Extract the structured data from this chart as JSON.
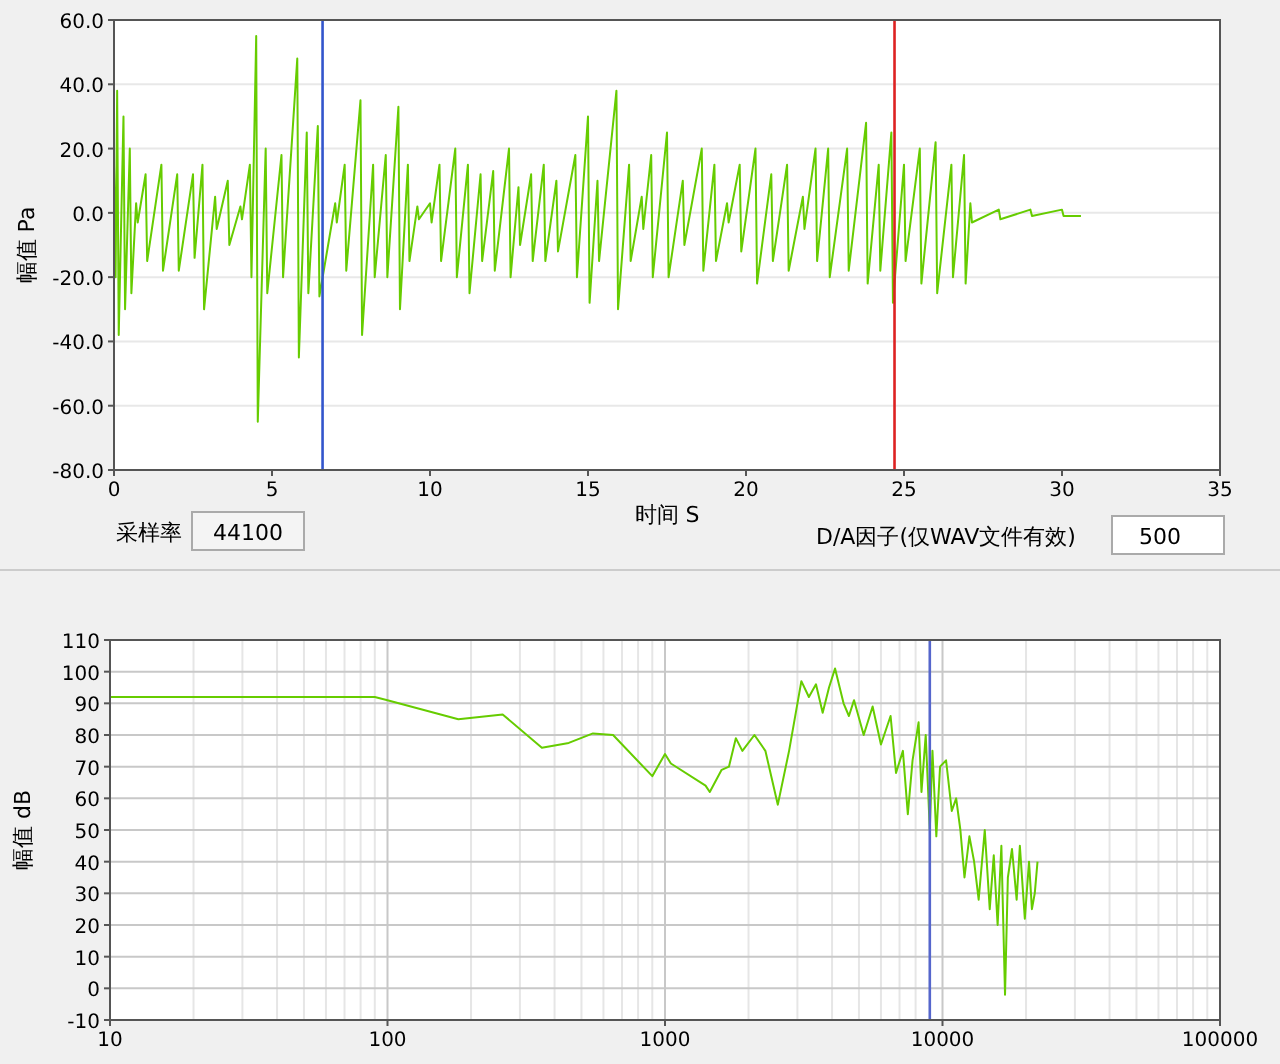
{
  "chart_data": [
    {
      "type": "line",
      "xlabel": "时间 S",
      "ylabel": "幅值 Pa",
      "xlim": [
        0,
        35
      ],
      "xticks": [
        0,
        5,
        10,
        15,
        20,
        25,
        30,
        35
      ],
      "ylim": [
        -80,
        60
      ],
      "yticks": [
        {
          "value": 60,
          "label": "60.0"
        },
        {
          "value": 40,
          "label": "40.0"
        },
        {
          "value": 20,
          "label": "20.0"
        },
        {
          "value": 0,
          "label": "0.0"
        },
        {
          "value": -20,
          "label": "-20.0"
        },
        {
          "value": -40,
          "label": "-40.0"
        },
        {
          "value": -60,
          "label": "-60.0"
        },
        {
          "value": -80,
          "label": "-80.0"
        }
      ],
      "grid": "y",
      "marker": "none",
      "line_style": "solid",
      "series": [
        {
          "color": "#66cc00",
          "x": [
            0,
            0.05,
            0.1,
            0.15,
            0.3,
            0.35,
            0.5,
            0.55,
            0.7,
            0.75,
            1.0,
            1.05,
            1.5,
            1.55,
            2.0,
            2.05,
            2.5,
            2.55,
            2.8,
            2.85,
            3.2,
            3.25,
            3.6,
            3.65,
            4.0,
            4.05,
            4.3,
            4.35,
            4.5,
            4.55,
            4.8,
            4.85,
            5.3,
            5.35,
            5.8,
            5.85,
            6.1,
            6.15,
            6.45,
            6.5,
            7.0,
            7.05,
            7.3,
            7.35,
            7.8,
            7.85,
            8.2,
            8.25,
            8.6,
            8.65,
            9.0,
            9.05,
            9.3,
            9.35,
            9.6,
            9.65,
            10.0,
            10.05,
            10.3,
            10.35,
            10.8,
            10.85,
            11.2,
            11.25,
            11.6,
            11.65,
            12.0,
            12.05,
            12.5,
            12.55,
            12.8,
            12.85,
            13.2,
            13.25,
            13.6,
            13.65,
            14.0,
            14.05,
            14.6,
            14.65,
            15.0,
            15.05,
            15.3,
            15.35,
            15.9,
            15.95,
            16.3,
            16.35,
            16.7,
            16.75,
            17.0,
            17.05,
            17.5,
            17.55,
            18.0,
            18.05,
            18.6,
            18.65,
            19.0,
            19.05,
            19.4,
            19.45,
            19.8,
            19.85,
            20.3,
            20.35,
            20.8,
            20.85,
            21.3,
            21.35,
            21.8,
            21.85,
            22.2,
            22.25,
            22.6,
            22.65,
            23.2,
            23.25,
            23.8,
            23.85,
            24.2,
            24.25,
            24.6,
            24.65,
            25.0,
            25.05,
            25.5,
            25.55,
            26.0,
            26.05,
            26.5,
            26.55,
            26.9,
            26.95,
            27.1,
            27.15,
            28.0,
            28.05,
            29.0,
            29.05,
            30.0,
            30.05,
            30.6
          ],
          "values": [
            15,
            -20,
            38,
            -38,
            30,
            -30,
            20,
            -25,
            3,
            -3,
            12,
            -15,
            15,
            -18,
            12,
            -18,
            12,
            -14,
            15,
            -30,
            5,
            -5,
            10,
            -10,
            2,
            -2,
            15,
            -20,
            55,
            -65,
            20,
            -25,
            18,
            -20,
            48,
            -45,
            25,
            -25,
            27,
            -26,
            3,
            -3,
            15,
            -18,
            35,
            -38,
            15,
            -20,
            18,
            -20,
            33,
            -30,
            15,
            -15,
            2,
            -2,
            3,
            -3,
            15,
            -15,
            20,
            -20,
            15,
            -25,
            12,
            -15,
            13,
            -18,
            20,
            -20,
            8,
            -10,
            12,
            -15,
            15,
            -15,
            10,
            -12,
            18,
            -20,
            30,
            -28,
            10,
            -15,
            38,
            -30,
            15,
            -15,
            5,
            -5,
            18,
            -20,
            25,
            -20,
            10,
            -10,
            20,
            -18,
            15,
            -15,
            3,
            -3,
            15,
            -12,
            20,
            -22,
            12,
            -15,
            15,
            -18,
            5,
            -5,
            20,
            -15,
            20,
            -20,
            20,
            -18,
            28,
            -22,
            15,
            -18,
            25,
            -28,
            15,
            -15,
            20,
            -22,
            22,
            -25,
            15,
            -20,
            18,
            -22,
            3,
            -3,
            1,
            -2,
            1,
            -1,
            1,
            -1,
            -1
          ]
        }
      ],
      "ref_lines": [
        {
          "axis": "x",
          "value": 6.6,
          "color": "#3355cc"
        },
        {
          "axis": "x",
          "value": 24.7,
          "color": "#dd2222"
        }
      ],
      "annotations": [
        "采样率",
        "44100",
        "D/A因子(仅WAV文件有效)",
        "500"
      ]
    },
    {
      "type": "line",
      "ylabel": "幅值 dB",
      "log": "x",
      "xlim": [
        10,
        100000
      ],
      "xticks": [
        10,
        100,
        1000,
        10000,
        100000
      ],
      "ylim": [
        -10,
        110
      ],
      "yticks": [
        -10,
        0,
        10,
        20,
        30,
        40,
        50,
        60,
        70,
        80,
        90,
        100,
        110
      ],
      "grid": true,
      "marker": "none",
      "line_style": "solid",
      "series": [
        {
          "color": "#66cc00",
          "x": [
            10,
            90,
            100,
            180,
            260,
            360,
            450,
            550,
            650,
            900,
            1000,
            1050,
            1400,
            1450,
            1600,
            1700,
            1800,
            1900,
            2100,
            2300,
            2550,
            2800,
            3100,
            3300,
            3500,
            3700,
            3900,
            4100,
            4400,
            4600,
            4800,
            5200,
            5600,
            6000,
            6500,
            6800,
            7200,
            7500,
            7800,
            8200,
            8400,
            8700,
            9000,
            9200,
            9500,
            9800,
            10300,
            10800,
            11200,
            11600,
            12000,
            12500,
            13000,
            13500,
            14200,
            14800,
            15300,
            15800,
            16300,
            16800,
            17200,
            17800,
            18500,
            19000,
            19800,
            20500,
            21000,
            21500,
            22000
          ],
          "values": [
            92,
            92,
            91,
            85,
            86.5,
            76,
            77.5,
            80.5,
            80,
            67,
            74,
            71,
            64,
            62,
            69,
            70,
            79,
            75,
            80,
            75,
            58,
            75,
            97,
            92,
            96,
            87,
            95,
            101,
            90,
            86,
            91,
            80,
            89,
            77,
            86,
            68,
            75,
            55,
            72,
            84,
            62,
            80,
            50,
            75,
            48,
            70,
            72,
            56,
            60,
            50,
            35,
            48,
            40,
            28,
            50,
            25,
            42,
            20,
            45,
            -2,
            35,
            44,
            28,
            45,
            22,
            40,
            25,
            30,
            40
          ]
        }
      ],
      "ref_lines": [
        {
          "axis": "x",
          "value": 9000,
          "color": "#5566cc"
        }
      ]
    }
  ]
}
